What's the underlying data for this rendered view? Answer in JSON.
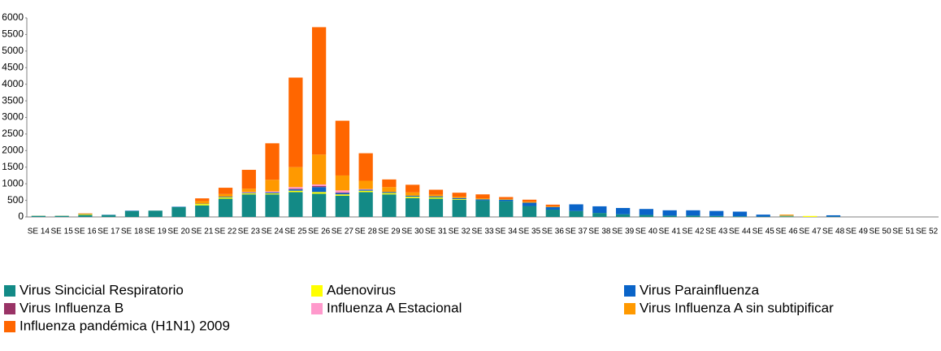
{
  "chart_data": {
    "type": "stacked-bar",
    "categories": [
      "SE 14",
      "SE 15",
      "SE 16",
      "SE 17",
      "SE 18",
      "SE 19",
      "SE 20",
      "SE 21",
      "SE 22",
      "SE 23",
      "SE 24",
      "SE 25",
      "SE 26",
      "SE 27",
      "SE 28",
      "SE 29",
      "SE 30",
      "SE 31",
      "SE 32",
      "SE 33",
      "SE 34",
      "SE 35",
      "SE 36",
      "SE 37",
      "SE 38",
      "SE 39",
      "SE 40",
      "SE 41",
      "SE 42",
      "SE 43",
      "SE 44",
      "SE 45",
      "SE 46",
      "SE 47",
      "SE 48",
      "SE 49",
      "SE 50",
      "SE 51",
      "SE 52"
    ],
    "series": [
      {
        "name": "Virus Sincicial Respiratorio",
        "color": "#138a86",
        "values": [
          30,
          30,
          60,
          60,
          180,
          190,
          300,
          350,
          550,
          680,
          680,
          750,
          700,
          640,
          750,
          680,
          570,
          550,
          520,
          500,
          480,
          330,
          220,
          180,
          120,
          80,
          60,
          40,
          40,
          30,
          20,
          10,
          20,
          0,
          10,
          0,
          0,
          0,
          0
        ]
      },
      {
        "name": "Adenovirus",
        "color": "#ffff00",
        "values": [
          5,
          5,
          20,
          0,
          0,
          0,
          0,
          40,
          40,
          30,
          30,
          40,
          50,
          40,
          40,
          40,
          40,
          40,
          20,
          0,
          0,
          0,
          0,
          0,
          0,
          0,
          0,
          0,
          0,
          0,
          0,
          0,
          10,
          30,
          0,
          0,
          0,
          0,
          0
        ]
      },
      {
        "name": "Virus Parainfluenza",
        "color": "#0a64c8",
        "values": [
          5,
          5,
          5,
          5,
          10,
          0,
          10,
          10,
          20,
          20,
          30,
          40,
          150,
          40,
          30,
          30,
          30,
          30,
          30,
          30,
          40,
          100,
          80,
          200,
          200,
          190,
          180,
          160,
          160,
          150,
          140,
          60,
          10,
          0,
          40,
          0,
          0,
          0,
          0
        ]
      },
      {
        "name": "Virus Influenza B",
        "color": "#993366",
        "values": [
          0,
          0,
          0,
          0,
          0,
          0,
          0,
          0,
          0,
          0,
          0,
          20,
          30,
          20,
          0,
          0,
          0,
          0,
          0,
          0,
          0,
          0,
          0,
          0,
          0,
          0,
          0,
          0,
          0,
          0,
          0,
          0,
          0,
          0,
          0,
          0,
          0,
          0,
          0
        ]
      },
      {
        "name": "Influenza A Estacional",
        "color": "#ff99cc",
        "values": [
          0,
          0,
          0,
          0,
          0,
          0,
          0,
          0,
          0,
          20,
          30,
          50,
          50,
          60,
          20,
          0,
          0,
          0,
          0,
          0,
          0,
          0,
          0,
          0,
          0,
          0,
          0,
          0,
          0,
          0,
          0,
          0,
          0,
          0,
          0,
          0,
          0,
          0,
          0
        ]
      },
      {
        "name": "Virus Influenza A sin subtipificar",
        "color": "#ff9900",
        "values": [
          0,
          0,
          20,
          0,
          0,
          0,
          0,
          80,
          80,
          100,
          350,
          600,
          900,
          450,
          250,
          150,
          100,
          50,
          40,
          30,
          20,
          30,
          20,
          0,
          0,
          0,
          0,
          0,
          0,
          0,
          0,
          0,
          30,
          0,
          0,
          0,
          0,
          0,
          0
        ]
      },
      {
        "name": "Influenza pandémica (H1N1) 2009",
        "color": "#ff6600",
        "values": [
          0,
          0,
          5,
          0,
          0,
          0,
          0,
          80,
          190,
          570,
          1100,
          2700,
          3840,
          1650,
          830,
          230,
          230,
          150,
          120,
          120,
          60,
          60,
          50,
          0,
          0,
          0,
          0,
          0,
          0,
          0,
          0,
          0,
          0,
          0,
          0,
          0,
          0,
          0,
          0
        ]
      }
    ],
    "ylim": [
      0,
      6000
    ],
    "yticks": [
      0,
      500,
      1000,
      1500,
      2000,
      2500,
      3000,
      3500,
      4000,
      4500,
      5000,
      5500,
      6000
    ]
  }
}
